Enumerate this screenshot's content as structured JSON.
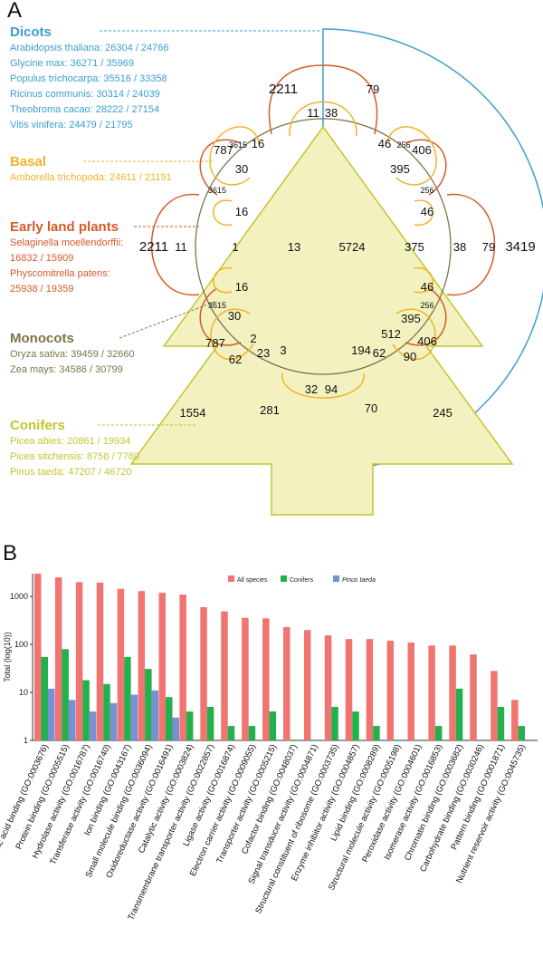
{
  "panel_a": {
    "label": "A",
    "groups": [
      {
        "name": "Dicots",
        "color": "#3a9fd0",
        "species": [
          "Arabidopsis thaliana: 26304 / 24766",
          "Glycine max: 36271 / 35969",
          "Populus trichocarpa: 35516 / 33358",
          "Ricinus communis: 30314 / 24039",
          "Theobroma cacao: 28222 / 27154",
          "Vitis vinifera: 24479 / 21795"
        ]
      },
      {
        "name": "Basal",
        "color": "#f0b429",
        "species": [
          "Amborella trichopoda: 24611 / 21191"
        ]
      },
      {
        "name": "Early land plants",
        "color": "#d65a2a",
        "species": [
          "Selaginella moellendorffii:",
          "16832 / 15909",
          "Physcomitrella patens:",
          "25938 / 19359"
        ]
      },
      {
        "name": "Monocots",
        "color": "#7b7448",
        "species": [
          "Oryza sativa: 39459 / 32660",
          "Zea mays: 34586 / 30799"
        ]
      },
      {
        "name": "Conifers",
        "color": "#c2c62e",
        "species": [
          "Picea abies: 20861 / 19934",
          "Picea sitchensis: 8758 / 7780",
          "Pinus taeda: 47207 / 46720"
        ]
      }
    ],
    "counts": [
      "2211",
      "79",
      "11",
      "38",
      "787",
      "3615",
      "16",
      "46",
      "256",
      "406",
      "30",
      "395",
      "3615",
      "256",
      "16",
      "46",
      "2211",
      "11",
      "1",
      "13",
      "5724",
      "375",
      "38",
      "79",
      "3419",
      "16",
      "46",
      "3615",
      "256",
      "30",
      "395",
      "787",
      "2",
      "512",
      "406",
      "62",
      "23",
      "3",
      "194",
      "62",
      "90",
      "32",
      "94",
      "1554",
      "281",
      "70",
      "245"
    ]
  },
  "panel_b": {
    "label": "B"
  },
  "chart_data": {
    "type": "bar",
    "ylabel": "Total (log(10))",
    "log_scale": true,
    "ylim": [
      1,
      3000
    ],
    "yticks": [
      "1",
      "10",
      "100",
      "1000"
    ],
    "legend_position": "top-center",
    "categories": [
      "Nucleic acid binding (GO:0003676)",
      "Protein binding (GO:0005515)",
      "Hydrolase activity (GO:0016787)",
      "Transferase activity (GO:0016740)",
      "Ion binding (GO:0043167)",
      "Small molecule binding (GO:0036094)",
      "Oxidoreductase activity (GO:0016491)",
      "Catalytic activity (GO:0003824)",
      "Transmembrane transporter activity (GO:0022857)",
      "Ligase activity (GO:0016874)",
      "Electron carrier activity (GO:0009055)",
      "Transporter activity (GO:0005215)",
      "Cofactor binding (GO:0048037)",
      "Signal transducer activity (GO:0004871)",
      "Structural constituent of ribosome (GO:0003735)",
      "Enzyme inhibitor activity (GO:0004857)",
      "Lipid binding (GO:0008289)",
      "Structural molecule activity (GO:0005198)",
      "Peroxidase activity (GO:0004601)",
      "Isomerase activity (GO:0016853)",
      "Chromatin binding (GO:0003682)",
      "Carbohydrate binding (GO:0030246)",
      "Pattern binding (GO:0001871)",
      "Nutrient reservoir activity (GO:0045735)"
    ],
    "series": [
      {
        "name": "All species",
        "color": "#f07470",
        "values": [
          3000,
          2500,
          2000,
          1950,
          1450,
          1300,
          1200,
          1100,
          600,
          490,
          360,
          350,
          230,
          200,
          155,
          130,
          130,
          120,
          110,
          95,
          95,
          62,
          28,
          7
        ]
      },
      {
        "name": "Conifers",
        "color": "#22b14c",
        "values": [
          55,
          80,
          18,
          15,
          55,
          31,
          8,
          4,
          5,
          2,
          2,
          4,
          1,
          1,
          5,
          4,
          2,
          1,
          1,
          2,
          12,
          1,
          5,
          2
        ]
      },
      {
        "name": "Pinus taeda",
        "color": "#7b8fd6",
        "values": [
          12,
          7,
          4,
          6,
          9,
          11,
          3,
          null,
          null,
          null,
          null,
          null,
          null,
          null,
          null,
          null,
          null,
          null,
          null,
          null,
          null,
          null,
          null,
          null
        ]
      }
    ]
  }
}
